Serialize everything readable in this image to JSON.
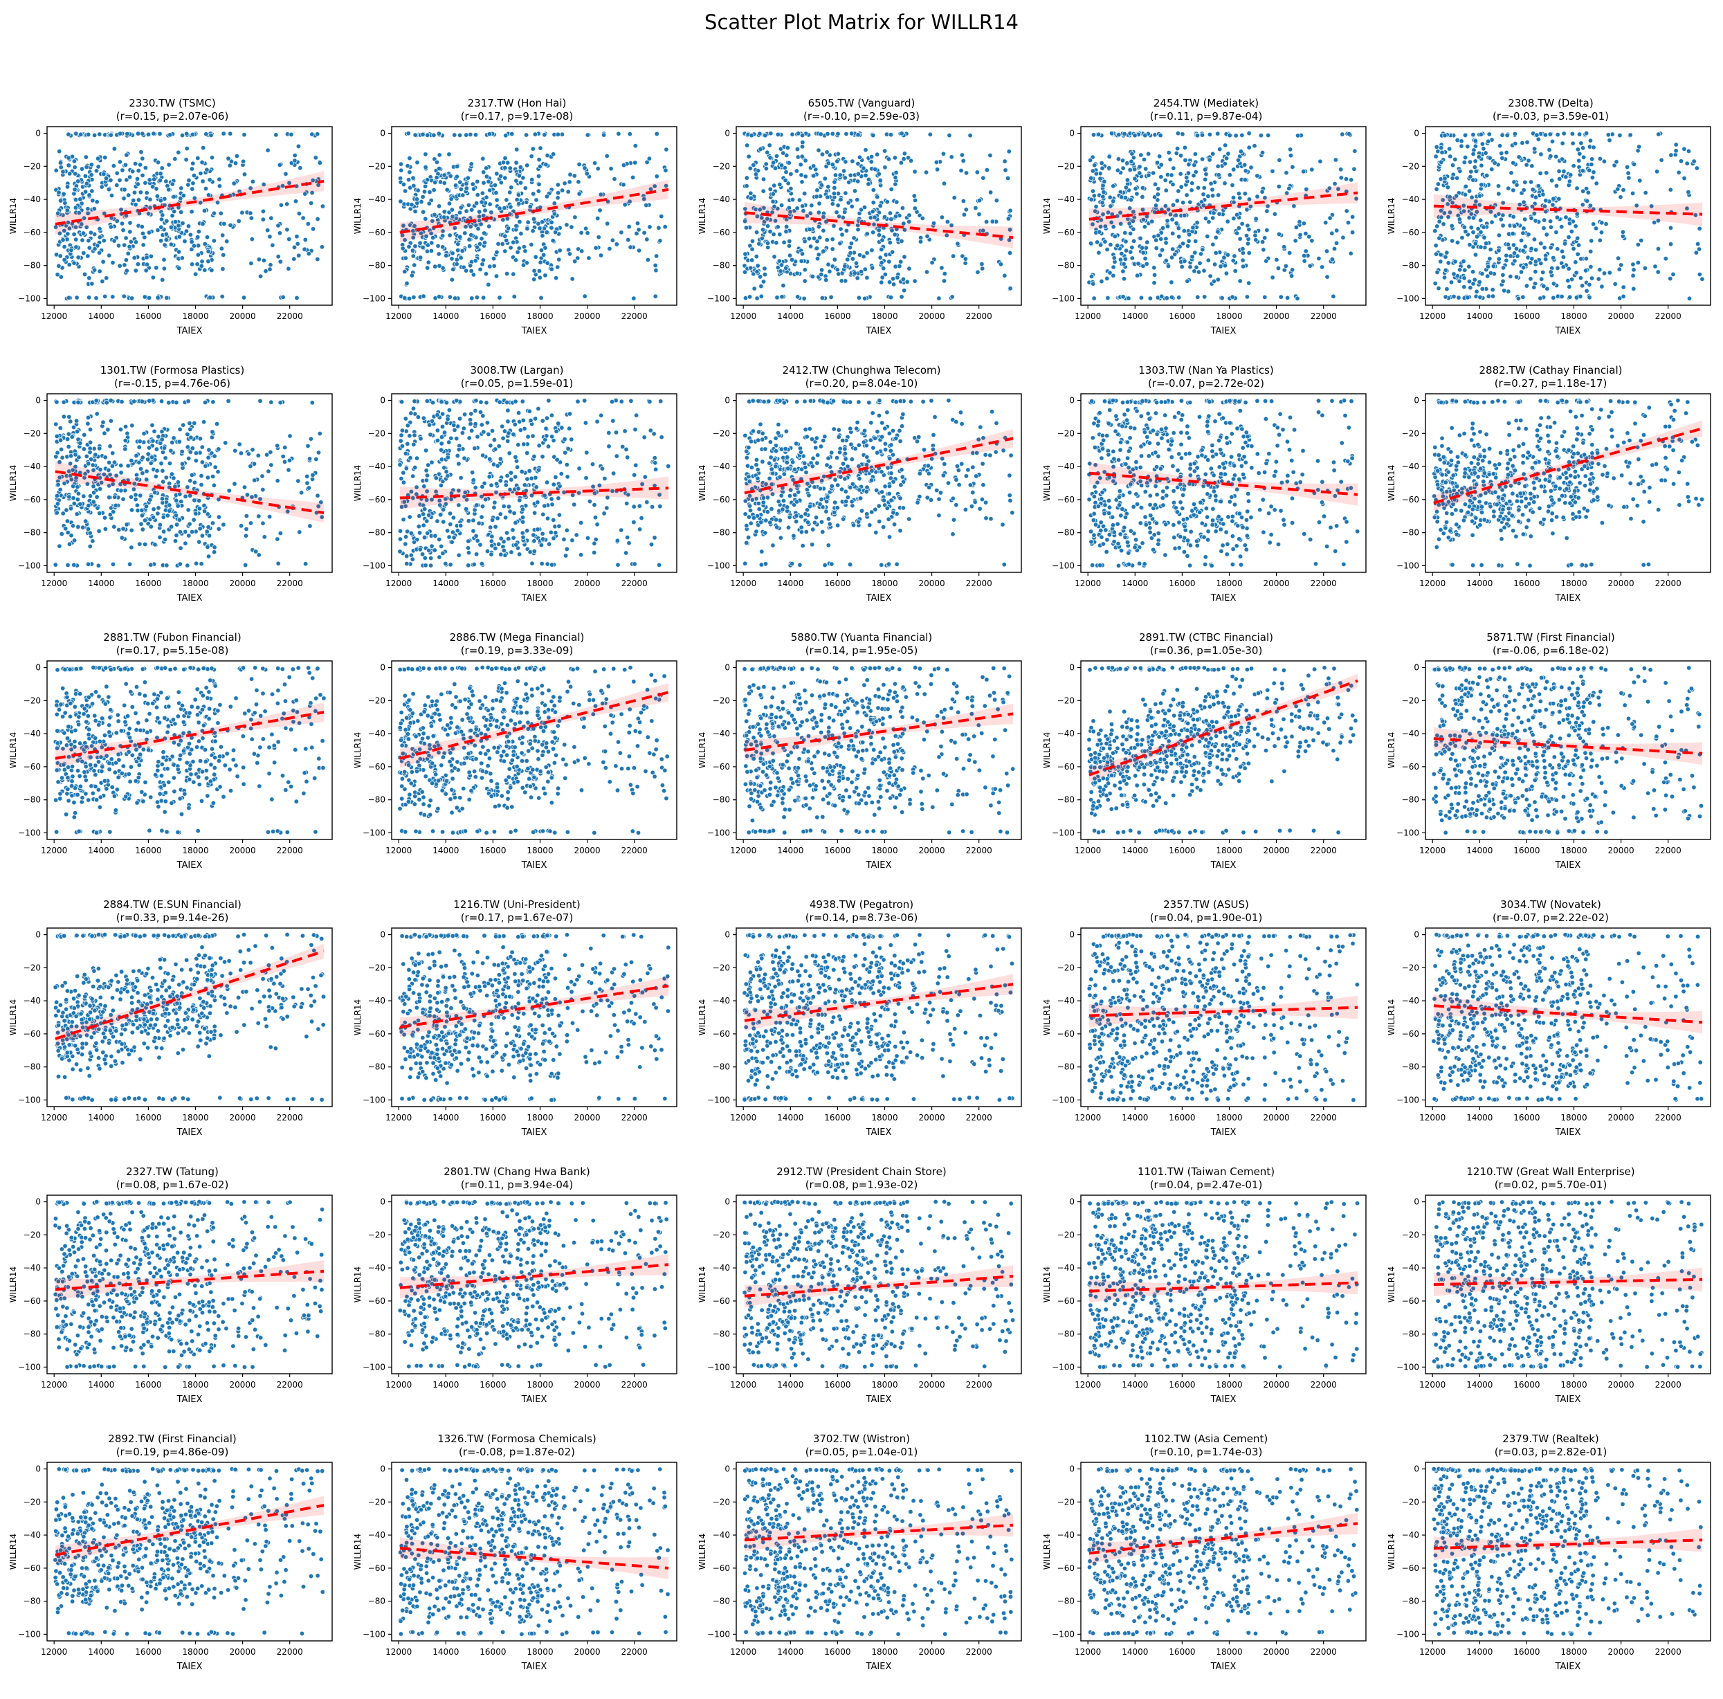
{
  "title": "Scatter Plot Matrix for WILLR14",
  "colors": {
    "point_fill": "#1f77b4",
    "point_edge": "#ffffff",
    "trend_line": "#ff0000",
    "confidence_band": "#ff0000",
    "confidence_band_opacity": 0.13,
    "spine": "#000000",
    "text": "#000000",
    "background": "#ffffff"
  },
  "chart_data": {
    "type": "scatter",
    "suptitle": "Scatter Plot Matrix for WILLR14",
    "grid_shape": {
      "rows": 6,
      "cols": 5
    },
    "xlabel": "TAIEX",
    "ylabel": "WILLR14",
    "x_tick_labels": [
      "12000",
      "14000",
      "16000",
      "18000",
      "20000",
      "22000"
    ],
    "x_tick_values": [
      12000,
      14000,
      16000,
      18000,
      20000,
      22000
    ],
    "y_tick_labels": [
      "0",
      "−20",
      "−40",
      "−60",
      "−80",
      "−100"
    ],
    "y_tick_values": [
      0,
      -20,
      -40,
      -60,
      -80,
      -100
    ],
    "x_range": [
      11700,
      23800
    ],
    "y_range": [
      -104,
      4
    ],
    "grid_lines": false,
    "legend": "none",
    "trend_style": "red dashed regression line with shaded confidence band",
    "plots": [
      {
        "ticker": "2330.TW",
        "company": "TSMC",
        "r": 0.15,
        "r_text": "0.15",
        "p_text": "2.07e-06",
        "trend": {
          "x": [
            12050,
            23450
          ],
          "y": [
            -55,
            -29
          ]
        }
      },
      {
        "ticker": "2317.TW",
        "company": "Hon Hai",
        "r": 0.17,
        "r_text": "0.17",
        "p_text": "9.17e-08",
        "trend": {
          "x": [
            12050,
            23450
          ],
          "y": [
            -60,
            -34
          ]
        }
      },
      {
        "ticker": "6505.TW",
        "company": "Vanguard",
        "r": -0.1,
        "r_text": "-0.10",
        "p_text": "2.59e-03",
        "trend": {
          "x": [
            12050,
            23450
          ],
          "y": [
            -48,
            -63
          ]
        }
      },
      {
        "ticker": "2454.TW",
        "company": "Mediatek",
        "r": 0.11,
        "r_text": "0.11",
        "p_text": "9.87e-04",
        "trend": {
          "x": [
            12050,
            23450
          ],
          "y": [
            -52,
            -36
          ]
        }
      },
      {
        "ticker": "2308.TW",
        "company": "Delta",
        "r": -0.03,
        "r_text": "-0.03",
        "p_text": "3.59e-01",
        "trend": {
          "x": [
            12050,
            23450
          ],
          "y": [
            -44,
            -49
          ]
        }
      },
      {
        "ticker": "1301.TW",
        "company": "Formosa Plastics",
        "r": -0.15,
        "r_text": "-0.15",
        "p_text": "4.76e-06",
        "trend": {
          "x": [
            12050,
            23450
          ],
          "y": [
            -43,
            -68
          ]
        }
      },
      {
        "ticker": "3008.TW",
        "company": "Largan",
        "r": 0.05,
        "r_text": "0.05",
        "p_text": "1.59e-01",
        "trend": {
          "x": [
            12050,
            23450
          ],
          "y": [
            -59,
            -53
          ]
        }
      },
      {
        "ticker": "2412.TW",
        "company": "Chunghwa Telecom",
        "r": 0.2,
        "r_text": "0.20",
        "p_text": "8.04e-10",
        "trend": {
          "x": [
            12050,
            23450
          ],
          "y": [
            -56,
            -23
          ]
        }
      },
      {
        "ticker": "1303.TW",
        "company": "Nan Ya Plastics",
        "r": -0.07,
        "r_text": "-0.07",
        "p_text": "2.72e-02",
        "trend": {
          "x": [
            12050,
            23450
          ],
          "y": [
            -44,
            -57
          ]
        }
      },
      {
        "ticker": "2882.TW",
        "company": "Cathay Financial",
        "r": 0.27,
        "r_text": "0.27",
        "p_text": "1.18e-17",
        "trend": {
          "x": [
            12050,
            23450
          ],
          "y": [
            -62,
            -17
          ]
        }
      },
      {
        "ticker": "2881.TW",
        "company": "Fubon Financial",
        "r": 0.17,
        "r_text": "0.17",
        "p_text": "5.15e-08",
        "trend": {
          "x": [
            12050,
            23450
          ],
          "y": [
            -55,
            -27
          ]
        }
      },
      {
        "ticker": "2886.TW",
        "company": "Mega Financial",
        "r": 0.19,
        "r_text": "0.19",
        "p_text": "3.33e-09",
        "trend": {
          "x": [
            12050,
            23450
          ],
          "y": [
            -55,
            -15
          ]
        }
      },
      {
        "ticker": "5880.TW",
        "company": "Yuanta Financial",
        "r": 0.14,
        "r_text": "0.14",
        "p_text": "1.95e-05",
        "trend": {
          "x": [
            12050,
            23450
          ],
          "y": [
            -50,
            -28
          ]
        }
      },
      {
        "ticker": "2891.TW",
        "company": "CTBC Financial",
        "r": 0.36,
        "r_text": "0.36",
        "p_text": "1.05e-30",
        "trend": {
          "x": [
            12050,
            23450
          ],
          "y": [
            -65,
            -8
          ]
        }
      },
      {
        "ticker": "5871.TW",
        "company": "First Financial",
        "r": -0.06,
        "r_text": "-0.06",
        "p_text": "6.18e-02",
        "trend": {
          "x": [
            12050,
            23450
          ],
          "y": [
            -43,
            -52
          ]
        }
      },
      {
        "ticker": "2884.TW",
        "company": "E.SUN Financial",
        "r": 0.33,
        "r_text": "0.33",
        "p_text": "9.14e-26",
        "trend": {
          "x": [
            12050,
            23450
          ],
          "y": [
            -63,
            -10
          ]
        }
      },
      {
        "ticker": "1216.TW",
        "company": "Uni-President",
        "r": 0.17,
        "r_text": "0.17",
        "p_text": "1.67e-07",
        "trend": {
          "x": [
            12050,
            23450
          ],
          "y": [
            -56,
            -31
          ]
        }
      },
      {
        "ticker": "4938.TW",
        "company": "Pegatron",
        "r": 0.14,
        "r_text": "0.14",
        "p_text": "8.73e-06",
        "trend": {
          "x": [
            12050,
            23450
          ],
          "y": [
            -52,
            -30
          ]
        }
      },
      {
        "ticker": "2357.TW",
        "company": "ASUS",
        "r": 0.04,
        "r_text": "0.04",
        "p_text": "1.90e-01",
        "trend": {
          "x": [
            12050,
            23450
          ],
          "y": [
            -49,
            -44
          ]
        }
      },
      {
        "ticker": "3034.TW",
        "company": "Novatek",
        "r": -0.07,
        "r_text": "-0.07",
        "p_text": "2.22e-02",
        "trend": {
          "x": [
            12050,
            23450
          ],
          "y": [
            -43,
            -53
          ]
        }
      },
      {
        "ticker": "2327.TW",
        "company": "Tatung",
        "r": 0.08,
        "r_text": "0.08",
        "p_text": "1.67e-02",
        "trend": {
          "x": [
            12050,
            23450
          ],
          "y": [
            -53,
            -42
          ]
        }
      },
      {
        "ticker": "2801.TW",
        "company": "Chang Hwa Bank",
        "r": 0.11,
        "r_text": "0.11",
        "p_text": "3.94e-04",
        "trend": {
          "x": [
            12050,
            23450
          ],
          "y": [
            -52,
            -38
          ]
        }
      },
      {
        "ticker": "2912.TW",
        "company": "President Chain Store",
        "r": 0.08,
        "r_text": "0.08",
        "p_text": "1.93e-02",
        "trend": {
          "x": [
            12050,
            23450
          ],
          "y": [
            -57,
            -45
          ]
        }
      },
      {
        "ticker": "1101.TW",
        "company": "Taiwan Cement",
        "r": 0.04,
        "r_text": "0.04",
        "p_text": "2.47e-01",
        "trend": {
          "x": [
            12050,
            23450
          ],
          "y": [
            -54,
            -49
          ]
        }
      },
      {
        "ticker": "1210.TW",
        "company": "Great Wall Enterprise",
        "r": 0.02,
        "r_text": "0.02",
        "p_text": "5.70e-01",
        "trend": {
          "x": [
            12050,
            23450
          ],
          "y": [
            -50,
            -47
          ]
        }
      },
      {
        "ticker": "2892.TW",
        "company": "First Financial",
        "r": 0.19,
        "r_text": "0.19",
        "p_text": "4.86e-09",
        "trend": {
          "x": [
            12050,
            23450
          ],
          "y": [
            -52,
            -22
          ]
        }
      },
      {
        "ticker": "1326.TW",
        "company": "Formosa Chemicals",
        "r": -0.08,
        "r_text": "-0.08",
        "p_text": "1.87e-02",
        "trend": {
          "x": [
            12050,
            23450
          ],
          "y": [
            -48,
            -60
          ]
        }
      },
      {
        "ticker": "3702.TW",
        "company": "Wistron",
        "r": 0.05,
        "r_text": "0.05",
        "p_text": "1.04e-01",
        "trend": {
          "x": [
            12050,
            23450
          ],
          "y": [
            -43,
            -34
          ]
        }
      },
      {
        "ticker": "1102.TW",
        "company": "Asia Cement",
        "r": 0.1,
        "r_text": "0.10",
        "p_text": "1.74e-03",
        "trend": {
          "x": [
            12050,
            23450
          ],
          "y": [
            -51,
            -33
          ]
        }
      },
      {
        "ticker": "2379.TW",
        "company": "Realtek",
        "r": 0.03,
        "r_text": "0.03",
        "p_text": "2.82e-01",
        "trend": {
          "x": [
            12050,
            23450
          ],
          "y": [
            -48,
            -43
          ]
        }
      }
    ]
  }
}
